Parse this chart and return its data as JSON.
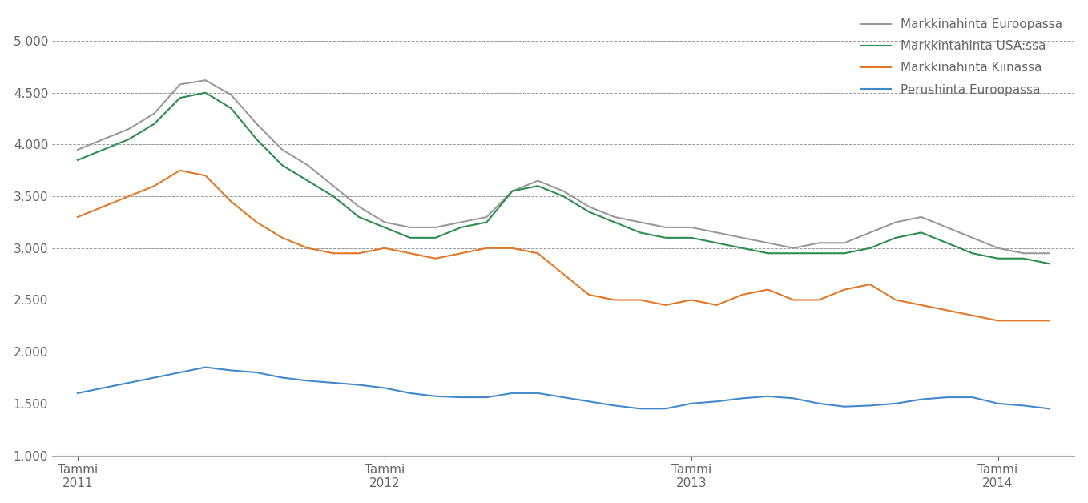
{
  "title": "",
  "background_color": "#ffffff",
  "plot_bg_color": "#ffffff",
  "grid_color": "#999999",
  "text_color": "#666666",
  "ylim": [
    1000,
    5250
  ],
  "yticks": [
    1000,
    1500,
    2000,
    2500,
    3000,
    3500,
    4000,
    4500,
    5000
  ],
  "ytick_labels": [
    "1.000",
    "1.500",
    "2.000",
    "2.500",
    "3.000",
    "3.500",
    "4.000",
    "4.500",
    "5 000"
  ],
  "xtick_positions": [
    0,
    12,
    24,
    36
  ],
  "xtick_labels": [
    "Tammi\n2011",
    "Tammi\n2012",
    "Tammi\n2013",
    "Tammi\n2014"
  ],
  "legend_labels": [
    "Markkinahinta Euroopassa",
    "Markkintahinta USA:ssa",
    "Markkinahinta Kiinassa",
    "Perushinta Euroopassa"
  ],
  "legend_colors": [
    "#999999",
    "#2d8c4e",
    "#e07828",
    "#4488cc"
  ],
  "series": {
    "europe": [
      3950,
      4050,
      4150,
      4300,
      4580,
      4620,
      4480,
      4200,
      3950,
      3800,
      3600,
      3400,
      3250,
      3200,
      3200,
      3250,
      3300,
      3550,
      3650,
      3550,
      3400,
      3300,
      3250,
      3200,
      3200,
      3150,
      3100,
      3050,
      3000,
      3050,
      3050,
      3150,
      3250,
      3300,
      3200,
      3100,
      3000,
      2950,
      2950
    ],
    "usa": [
      3850,
      3950,
      4050,
      4200,
      4450,
      4500,
      4350,
      4050,
      3800,
      3650,
      3500,
      3300,
      3200,
      3100,
      3100,
      3200,
      3250,
      3550,
      3600,
      3500,
      3350,
      3250,
      3150,
      3100,
      3100,
      3050,
      3000,
      2950,
      2950,
      2950,
      2950,
      3000,
      3100,
      3150,
      3050,
      2950,
      2900,
      2900,
      2850
    ],
    "china": [
      3300,
      3400,
      3500,
      3600,
      3750,
      3700,
      3450,
      3250,
      3100,
      3000,
      2950,
      2950,
      3000,
      2950,
      2900,
      2950,
      3000,
      3000,
      2950,
      2750,
      2550,
      2500,
      2500,
      2450,
      2500,
      2450,
      2550,
      2600,
      2500,
      2500,
      2600,
      2650,
      2500,
      2450,
      2400,
      2350,
      2300,
      2300,
      2300
    ],
    "base": [
      1600,
      1650,
      1700,
      1750,
      1800,
      1850,
      1820,
      1800,
      1750,
      1720,
      1700,
      1680,
      1650,
      1600,
      1570,
      1560,
      1560,
      1600,
      1600,
      1560,
      1520,
      1480,
      1450,
      1450,
      1500,
      1520,
      1550,
      1570,
      1550,
      1500,
      1470,
      1480,
      1500,
      1540,
      1560,
      1560,
      1500,
      1480,
      1450
    ]
  }
}
